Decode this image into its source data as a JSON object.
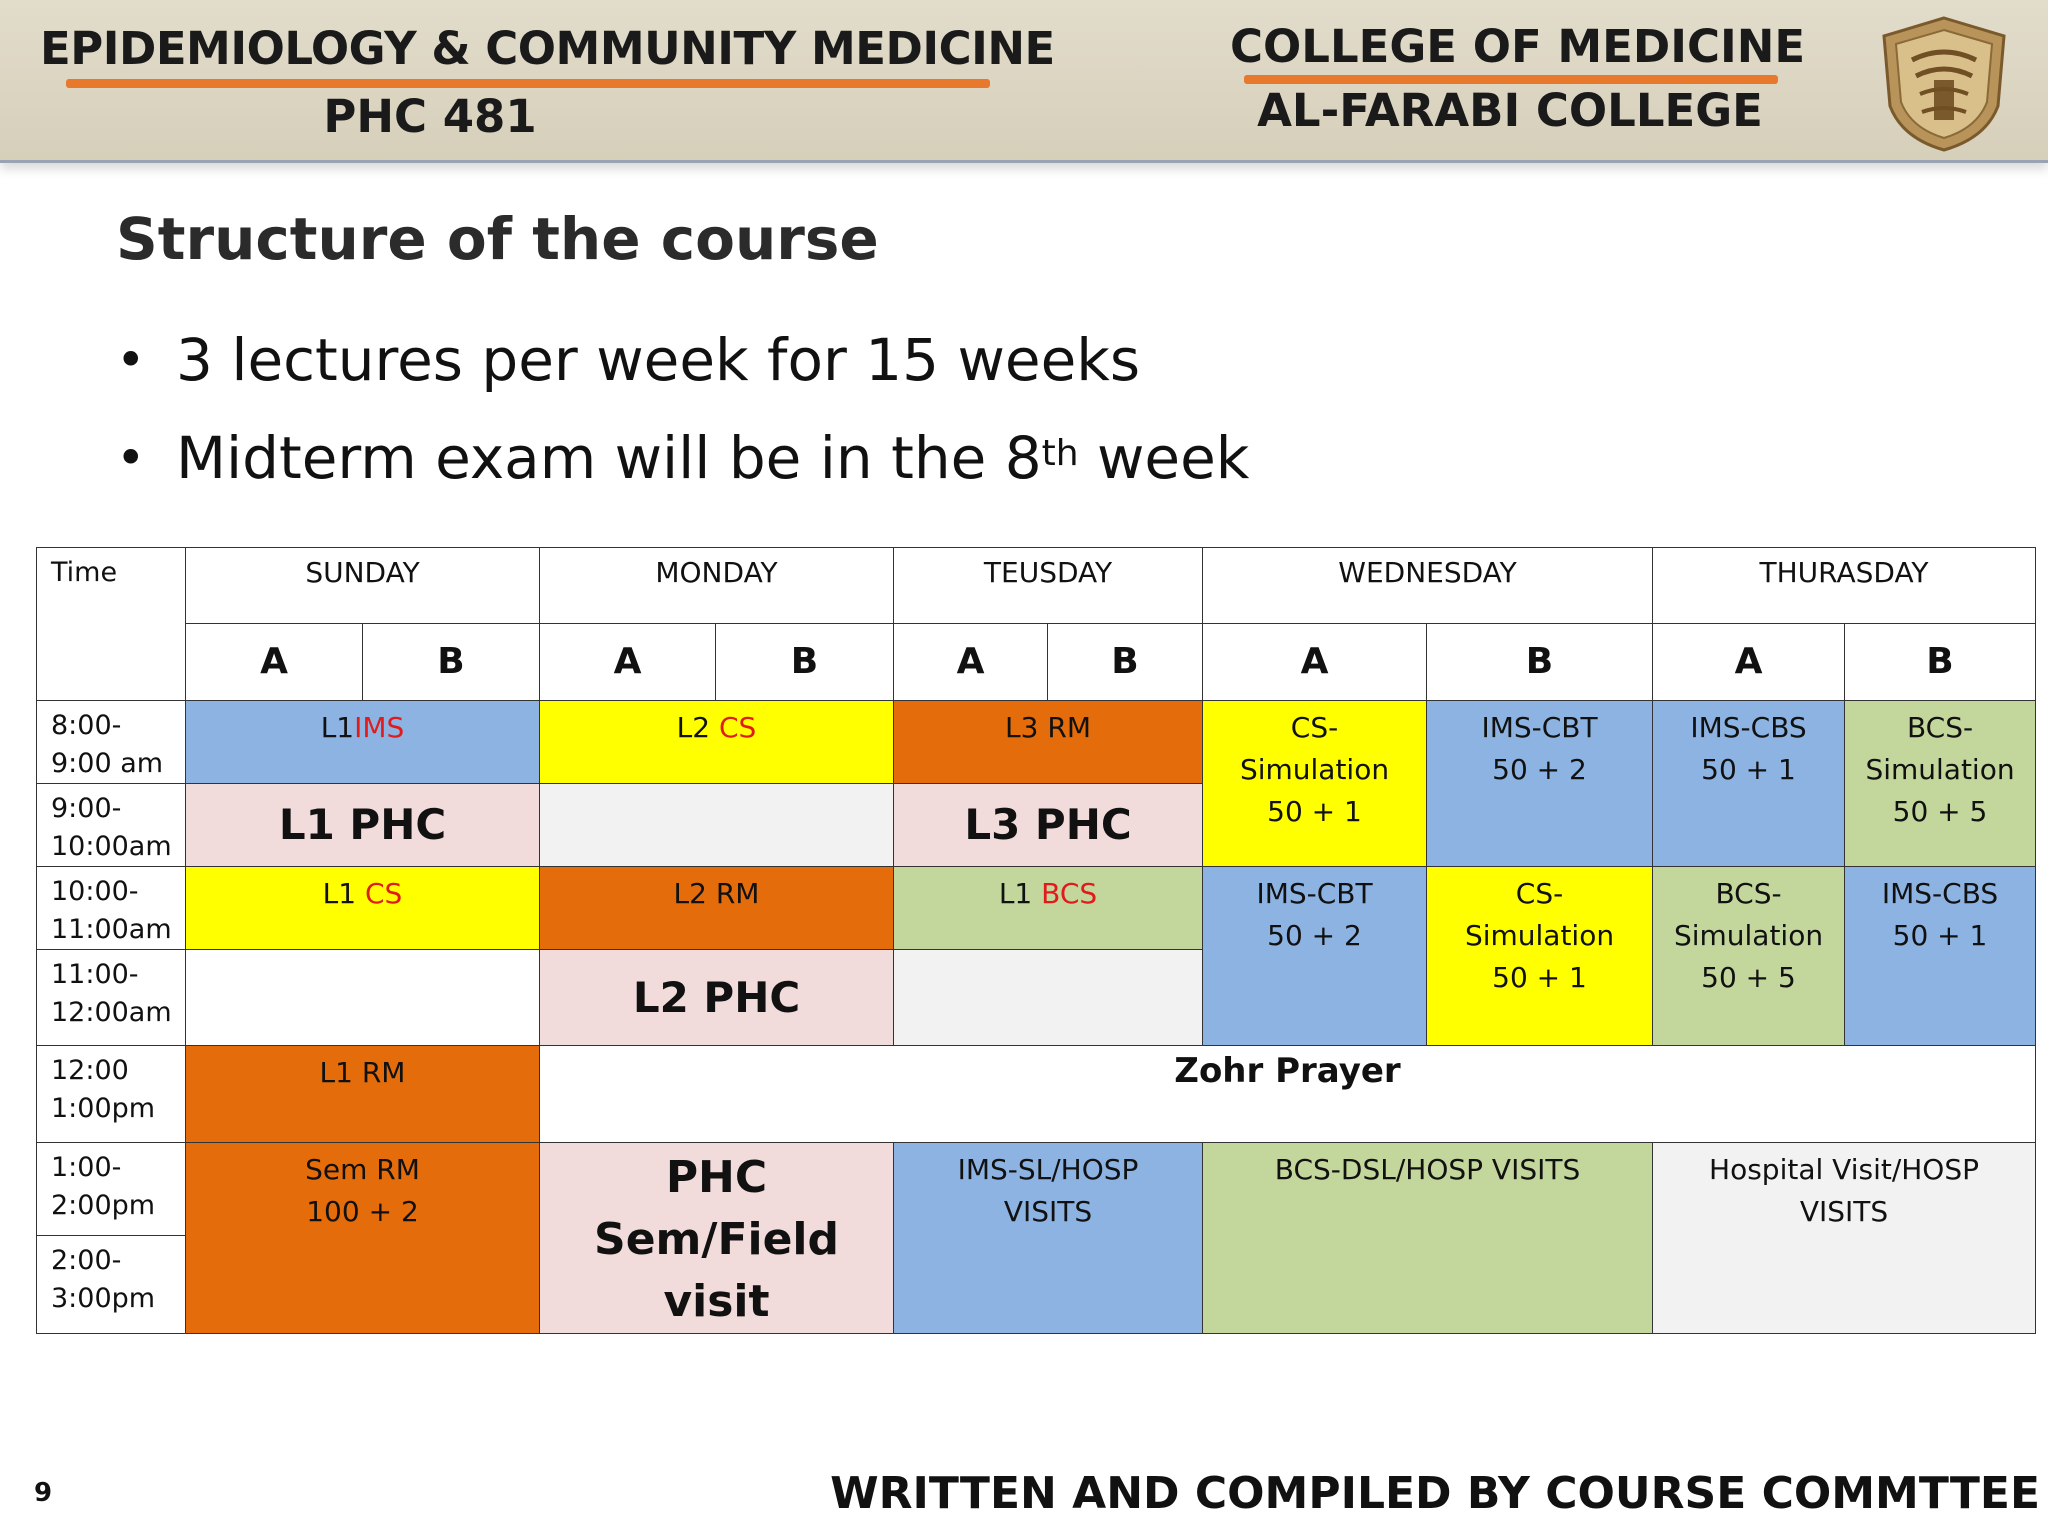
{
  "header": {
    "department": "EPIDEMIOLOGY & COMMUNITY MEDICINE",
    "course_code": "PHC 481",
    "college": "COLLEGE OF MEDICINE",
    "college_sub": "AL-FARABI COLLEGE",
    "logo_icon": "college-crest-icon",
    "accent_color": "#e8782c"
  },
  "slide": {
    "title": "Structure of the course",
    "bullets": [
      {
        "text": "3 lectures per week for 15 weeks"
      },
      {
        "prefix": "Midterm exam will be in the 8",
        "sup": "th",
        "suffix": " week"
      }
    ]
  },
  "timetable": {
    "time_header": "Time",
    "days": [
      "SUNDAY",
      "MONDAY",
      "TEUSDAY",
      "WEDNESDAY",
      "THURASDAY"
    ],
    "groups": [
      "A",
      "B"
    ],
    "times": {
      "t1": [
        "8:00-",
        "9:00 am"
      ],
      "t2": [
        "9:00-",
        "10:00am"
      ],
      "t3": [
        "10:00-",
        "11:00am"
      ],
      "t4": [
        "11:00-",
        "12:00am"
      ],
      "t5": [
        "12:00",
        "1:00pm"
      ],
      "t6": [
        "1:00-",
        "2:00pm"
      ],
      "t7": [
        "2:00-",
        "3:00pm"
      ]
    },
    "cells": {
      "sun_1_pre": "L1",
      "sun_1_red": "IMS",
      "mon_1_pre": "L2 ",
      "mon_1_red": "CS",
      "tue_1": "L3 RM",
      "wed_a_1": [
        "CS-",
        "Simulation",
        "50 + 1"
      ],
      "wed_b_1": [
        "IMS-CBT",
        "50 + 2"
      ],
      "thu_a_1": [
        "IMS-CBS",
        "50 + 1"
      ],
      "thu_b_1": [
        "BCS-",
        "Simulation",
        "50 + 5"
      ],
      "sun_2": "L1 PHC",
      "tue_2": "L3 PHC",
      "sun_3_pre": "L1 ",
      "sun_3_red": "CS",
      "mon_3": "L2 RM",
      "tue_3_pre": "L1 ",
      "tue_3_red": "BCS",
      "wed_a_3": [
        "IMS-CBT",
        "50 + 2"
      ],
      "wed_b_3": [
        "CS-",
        "Simulation",
        "50 + 1"
      ],
      "thu_a_3": [
        "BCS-",
        "Simulation",
        "50 + 5"
      ],
      "thu_b_3": [
        "IMS-CBS",
        "50 + 1"
      ],
      "mon_4": "L2 PHC",
      "sun_5": "L1 RM",
      "zohr": "Zohr Prayer",
      "sun_6": [
        "Sem RM",
        "100 + 2"
      ],
      "mon_6": [
        "PHC Sem/Field",
        "visit"
      ],
      "tue_6": [
        "IMS-SL/HOSP",
        "VISITS"
      ],
      "wed_6": "BCS-DSL/HOSP VISITS",
      "thu_6": [
        "Hospital Visit/HOSP",
        "VISITS"
      ]
    }
  },
  "footer": {
    "page_number": "9",
    "credit": "WRITTEN AND COMPILED BY COURSE COMMTTEE"
  }
}
